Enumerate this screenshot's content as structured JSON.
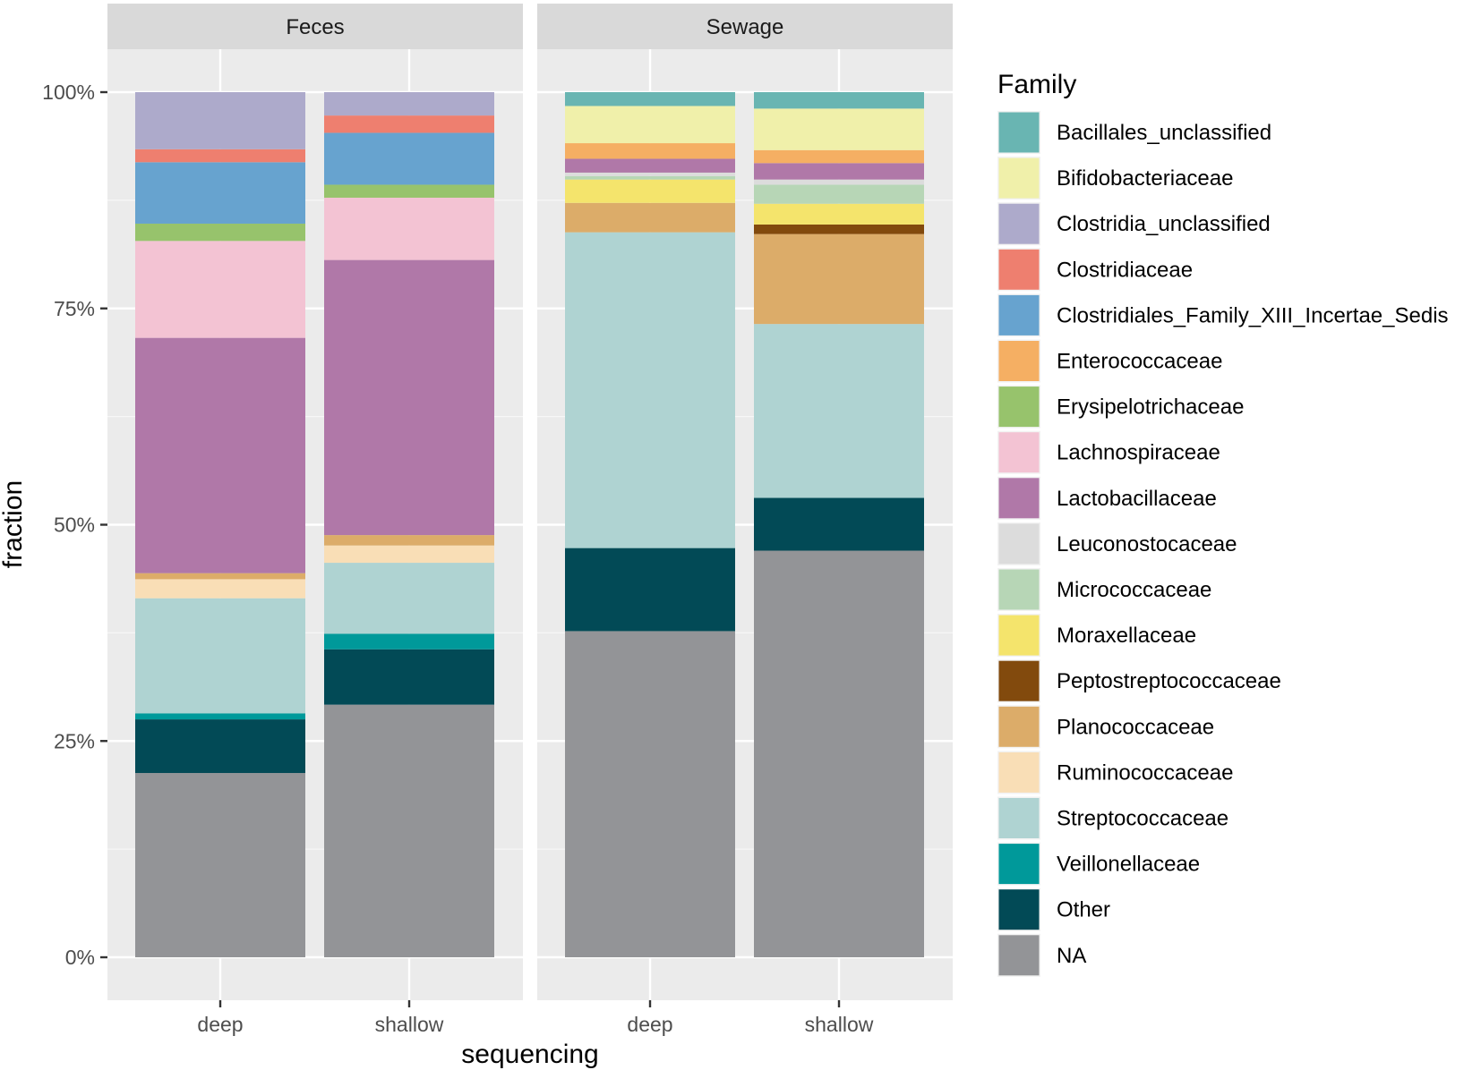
{
  "chart_data": {
    "type": "bar",
    "stacked": true,
    "title": "",
    "xlabel": "sequencing",
    "ylabel": "fraction",
    "ylim": [
      0,
      1
    ],
    "yticks": [
      0,
      0.25,
      0.5,
      0.75,
      1
    ],
    "ytick_labels": [
      "0%",
      "25%",
      "50%",
      "75%",
      "100%"
    ],
    "categories": [
      "deep",
      "shallow"
    ],
    "facets": [
      {
        "label": "Feces",
        "bars": [
          {
            "category": "deep",
            "segments": [
              {
                "family": "NA",
                "value": 0.213
              },
              {
                "family": "Other",
                "value": 0.062
              },
              {
                "family": "Veillonellaceae",
                "value": 0.007
              },
              {
                "family": "Streptococcaceae",
                "value": 0.133
              },
              {
                "family": "Ruminococcaceae",
                "value": 0.022
              },
              {
                "family": "Planococcaceae",
                "value": 0.007
              },
              {
                "family": "Lactobacillaceae",
                "value": 0.272
              },
              {
                "family": "Lachnospiraceae",
                "value": 0.112
              },
              {
                "family": "Erysipelotrichaceae",
                "value": 0.02
              },
              {
                "family": "Clostridiales_Family_XIII_Incertae_Sedis",
                "value": 0.071
              },
              {
                "family": "Clostridiaceae",
                "value": 0.015
              },
              {
                "family": "Clostridia_unclassified",
                "value": 0.066
              }
            ]
          },
          {
            "category": "shallow",
            "segments": [
              {
                "family": "NA",
                "value": 0.292
              },
              {
                "family": "Other",
                "value": 0.064
              },
              {
                "family": "Veillonellaceae",
                "value": 0.018
              },
              {
                "family": "Streptococcaceae",
                "value": 0.082
              },
              {
                "family": "Ruminococcaceae",
                "value": 0.02
              },
              {
                "family": "Planococcaceae",
                "value": 0.012
              },
              {
                "family": "Lactobacillaceae",
                "value": 0.318
              },
              {
                "family": "Lachnospiraceae",
                "value": 0.072
              },
              {
                "family": "Erysipelotrichaceae",
                "value": 0.015
              },
              {
                "family": "Clostridiales_Family_XIII_Incertae_Sedis",
                "value": 0.06
              },
              {
                "family": "Clostridiaceae",
                "value": 0.02
              },
              {
                "family": "Clostridia_unclassified",
                "value": 0.027
              }
            ]
          }
        ]
      },
      {
        "label": "Sewage",
        "bars": [
          {
            "category": "deep",
            "segments": [
              {
                "family": "NA",
                "value": 0.377
              },
              {
                "family": "Other",
                "value": 0.096
              },
              {
                "family": "Streptococcaceae",
                "value": 0.365
              },
              {
                "family": "Planococcaceae",
                "value": 0.034
              },
              {
                "family": "Moraxellaceae",
                "value": 0.027
              },
              {
                "family": "Micrococcaceae",
                "value": 0.004
              },
              {
                "family": "Leuconostocaceae",
                "value": 0.004
              },
              {
                "family": "Lactobacillaceae",
                "value": 0.016
              },
              {
                "family": "Enterococcaceae",
                "value": 0.018
              },
              {
                "family": "Bifidobacteriaceae",
                "value": 0.043
              },
              {
                "family": "Bacillales_unclassified",
                "value": 0.016
              }
            ]
          },
          {
            "category": "shallow",
            "segments": [
              {
                "family": "NA",
                "value": 0.47
              },
              {
                "family": "Other",
                "value": 0.061
              },
              {
                "family": "Streptococcaceae",
                "value": 0.201
              },
              {
                "family": "Planococcaceae",
                "value": 0.104
              },
              {
                "family": "Peptostreptococcaceae",
                "value": 0.011
              },
              {
                "family": "Moraxellaceae",
                "value": 0.024
              },
              {
                "family": "Micrococcaceae",
                "value": 0.022
              },
              {
                "family": "Leuconostocaceae",
                "value": 0.006
              },
              {
                "family": "Lactobacillaceae",
                "value": 0.019
              },
              {
                "family": "Enterococcaceae",
                "value": 0.015
              },
              {
                "family": "Bifidobacteriaceae",
                "value": 0.048
              },
              {
                "family": "Bacillales_unclassified",
                "value": 0.019
              }
            ]
          }
        ]
      }
    ],
    "legend": {
      "title": "Family",
      "position": "right",
      "entries": [
        {
          "label": "Bacillales_unclassified",
          "color": "#69b5b2"
        },
        {
          "label": "Bifidobacteriaceae",
          "color": "#f0f0aa"
        },
        {
          "label": "Clostridia_unclassified",
          "color": "#adaacb"
        },
        {
          "label": "Clostridiaceae",
          "color": "#ee7f6f"
        },
        {
          "label": "Clostridiales_Family_XIII_Incertae_Sedis",
          "color": "#67a3cf"
        },
        {
          "label": "Enterococcaceae",
          "color": "#f5af63"
        },
        {
          "label": "Erysipelotrichaceae",
          "color": "#97c36c"
        },
        {
          "label": "Lachnospiraceae",
          "color": "#f3c3d3"
        },
        {
          "label": "Lactobacillaceae",
          "color": "#b078a8"
        },
        {
          "label": "Leuconostocaceae",
          "color": "#dcdcdc"
        },
        {
          "label": "Micrococcaceae",
          "color": "#b7d6b6"
        },
        {
          "label": "Moraxellaceae",
          "color": "#f4e46c"
        },
        {
          "label": "Peptostreptococcaceae",
          "color": "#824a0d"
        },
        {
          "label": "Planococcaceae",
          "color": "#dcac69"
        },
        {
          "label": "Ruminococcaceae",
          "color": "#f9deb6"
        },
        {
          "label": "Streptococcaceae",
          "color": "#afd3d2"
        },
        {
          "label": "Veillonellaceae",
          "color": "#00999a"
        },
        {
          "label": "Other",
          "color": "#024a56"
        },
        {
          "label": "NA",
          "color": "#939497"
        }
      ]
    },
    "colors": {
      "panel_background": "#ebebeb",
      "strip_background": "#d9d9d9",
      "grid_major": "#ffffff",
      "grid_minor": "#f5f5f5"
    }
  }
}
